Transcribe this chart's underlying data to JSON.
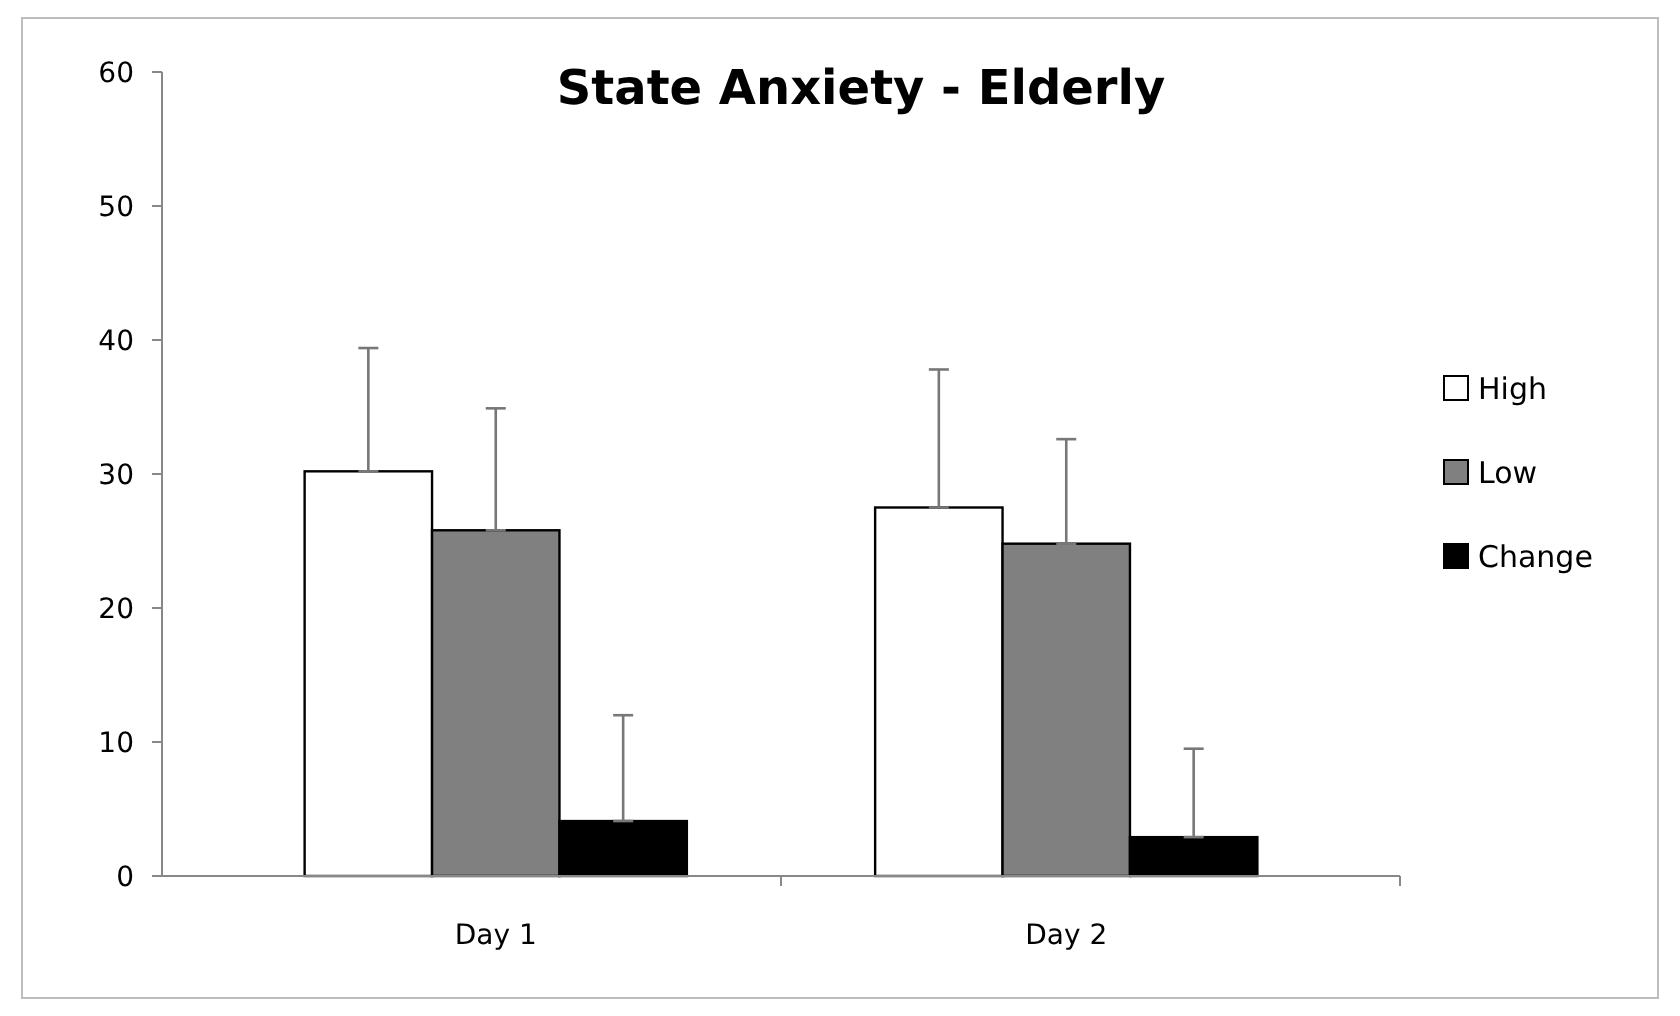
{
  "chart_data": {
    "type": "bar",
    "title": "State Anxiety - Elderly",
    "categories": [
      "Day 1",
      "Day 2"
    ],
    "series": [
      {
        "name": "High",
        "color": "#ffffff",
        "values": [
          30.2,
          27.5
        ],
        "errors": [
          [
            30.2,
            39.4
          ],
          [
            27.5,
            37.8
          ]
        ]
      },
      {
        "name": "Low",
        "color": "#808080",
        "values": [
          25.8,
          24.8
        ],
        "errors": [
          [
            25.8,
            34.9
          ],
          [
            24.8,
            32.6
          ]
        ]
      },
      {
        "name": "Change",
        "color": "#000000",
        "values": [
          4.1,
          2.9
        ],
        "errors": [
          [
            4.1,
            12.0
          ],
          [
            2.9,
            9.5
          ]
        ]
      }
    ],
    "ylim": [
      0,
      60
    ],
    "yticks": [
      0,
      10,
      20,
      30,
      40,
      50,
      60
    ],
    "grid": false,
    "legend": "right"
  }
}
